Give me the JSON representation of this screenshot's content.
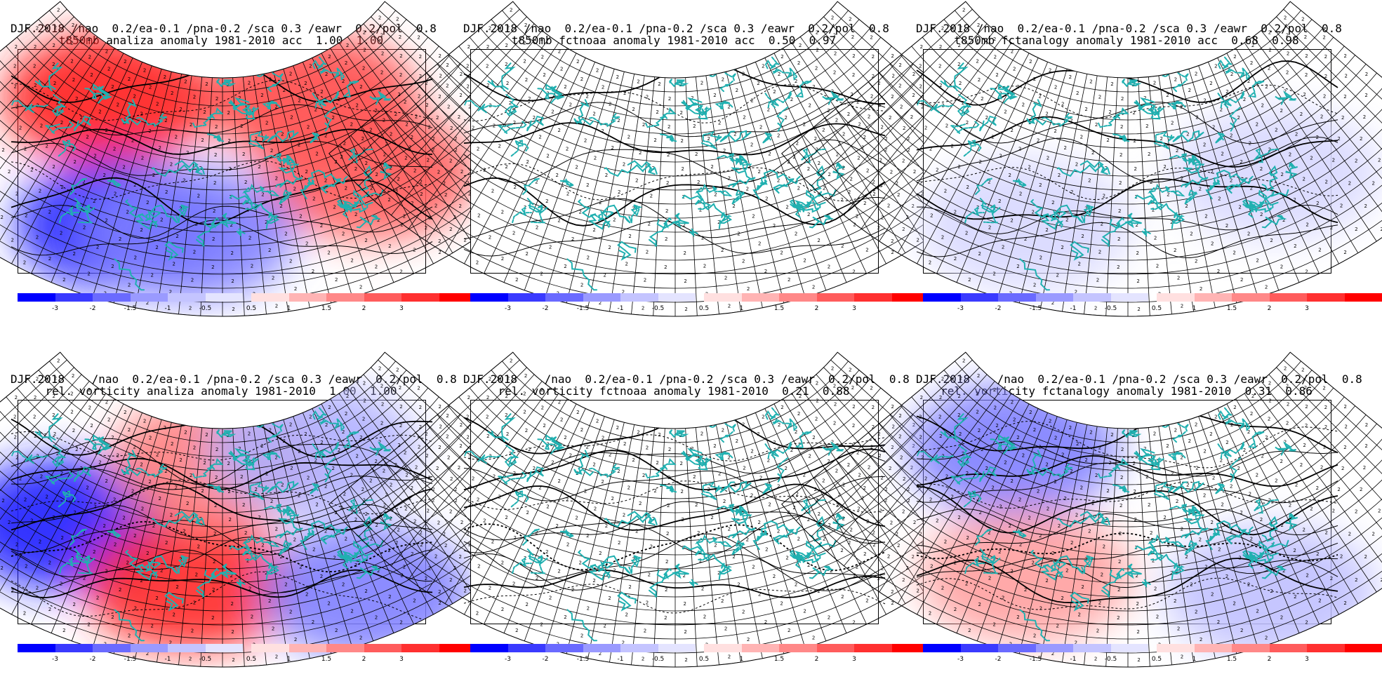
{
  "panels": [
    {
      "title_line1": "DJF.2018 /nao  0.2/ea-0.1 /pna-0.2 /sca 0.3 /eawr  0.2/pol  0.8",
      "title_line2": "t850mb analiza anomaly 1981-2010 acc  1.00  1.00",
      "variable": "t850mb",
      "source": "analiza",
      "acc": [
        "1.00",
        "1.00"
      ],
      "fill": [
        {
          "color": "#ff2020",
          "region": "north-west"
        },
        {
          "color": "#ff4a4a",
          "region": "north-east"
        },
        {
          "color": "#ff5a5a",
          "region": "east"
        },
        {
          "color": "#2a2aff",
          "region": "south-west"
        },
        {
          "color": "#8080ff",
          "region": "south-central"
        }
      ]
    },
    {
      "title_line1": "DJF.2018 /nao  0.2/ea-0.1 /pna-0.2 /sca 0.3 /eawr  0.2/pol  0.8",
      "title_line2": "t850mb fctnoaa anomaly 1981-2010 acc  0.50  0.97",
      "variable": "t850mb",
      "source": "fctnoaa",
      "acc": [
        "0.50",
        "0.97"
      ],
      "fill": []
    },
    {
      "title_line1": "DJF.2018 /nao  0.2/ea-0.1 /pna-0.2 /sca 0.3 /eawr  0.2/pol  0.8",
      "title_line2": "t850mb fctanalogy anomaly 1981-2010 acc  0.68  0.98",
      "variable": "t850mb",
      "source": "fctanalogy",
      "acc": [
        "0.68",
        "0.98"
      ],
      "fill": [
        {
          "color": "#d8d8ff",
          "region": "south-west"
        },
        {
          "color": "#d8d8ff",
          "region": "east"
        }
      ]
    },
    {
      "title_line1": "DJF.2018    /nao  0.2/ea-0.1 /pna-0.2 /sca 0.3 /eawr  0.2/pol  0.8",
      "title_line2": "rel. vorticity analiza anomaly 1981-2010  1.00  1.00",
      "variable": "rel. vorticity",
      "source": "analiza",
      "acc": [
        "1.00",
        "1.00"
      ],
      "fill": [
        {
          "color": "#2020ff",
          "region": "west"
        },
        {
          "color": "#ff2a2a",
          "region": "south-central"
        },
        {
          "color": "#ff8080",
          "region": "north-central"
        },
        {
          "color": "#8080ff",
          "region": "south-east"
        },
        {
          "color": "#b0b0ff",
          "region": "north-east"
        }
      ]
    },
    {
      "title_line1": "DJF.2018    /nao  0.2/ea-0.1 /pna-0.2 /sca 0.3 /eawr  0.2/pol  0.8",
      "title_line2": "rel. vorticity fctnoaa anomaly 1981-2010  0.21  0.88",
      "variable": "rel. vorticity",
      "source": "fctnoaa",
      "acc": [
        "0.21",
        "0.88"
      ],
      "fill": []
    },
    {
      "title_line1": "DJF.2018    /nao  0.2/ea-0.1 /pna-0.2 /sca 0.3 /eawr  0.2/pol  0.8",
      "title_line2": "rel. vorticity fctanalogy anomaly 1981-2010  0.31  0.86",
      "variable": "rel. vorticity",
      "source": "fctanalogy",
      "acc": [
        "0.31",
        "0.86"
      ],
      "fill": [
        {
          "color": "#8080ff",
          "region": "north-west"
        },
        {
          "color": "#ffa0a0",
          "region": "south-west"
        },
        {
          "color": "#c0c0ff",
          "region": "south-east"
        }
      ]
    }
  ],
  "colorbar": {
    "negative": [
      {
        "color": "#0000ff"
      },
      {
        "color": "#3a3aff"
      },
      {
        "color": "#6a6aff"
      },
      {
        "color": "#9a9aff"
      },
      {
        "color": "#c4c4ff"
      },
      {
        "color": "#e4e4ff"
      }
    ],
    "positive": [
      {
        "color": "#ffe0e0"
      },
      {
        "color": "#ffb4b4"
      },
      {
        "color": "#ff8888"
      },
      {
        "color": "#ff5c5c"
      },
      {
        "color": "#ff3030"
      },
      {
        "color": "#ff0000"
      }
    ],
    "neg_labels": [
      "-3",
      "-2",
      "-1.5",
      "-1",
      "-0.5"
    ],
    "pos_labels": [
      "0.5",
      "1",
      "1.5",
      "2",
      "3"
    ]
  },
  "map_grid_tick_label": "2",
  "coastline_color": "#20b0b0",
  "grid_color": "#000000"
}
